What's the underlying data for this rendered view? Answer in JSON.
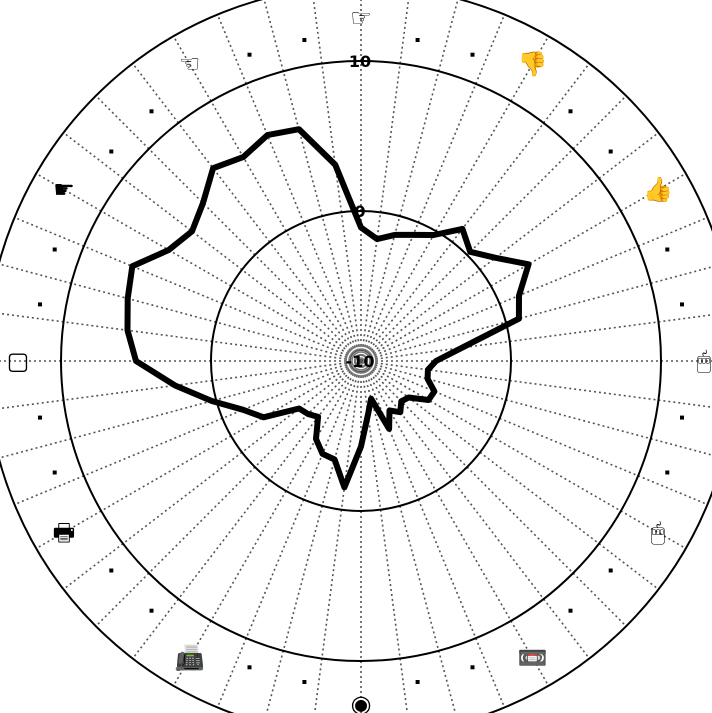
{
  "chart_data": {
    "type": "radar",
    "title": "",
    "r_range": [
      -10,
      15
    ],
    "r_ticks": [
      {
        "value": -10,
        "label": "-10"
      },
      {
        "value": 0,
        "label": "0"
      },
      {
        "value": 10,
        "label": "10"
      }
    ],
    "grid": true,
    "num_spokes": 48,
    "category_icons": [
      {
        "name": "pointing-right-hand-icon",
        "glyph": "☞"
      },
      {
        "name": "thumbs-down-icon",
        "glyph": "👎"
      },
      {
        "name": "thumbs-up-icon",
        "glyph": "👍"
      },
      {
        "name": "mouse-icon",
        "glyph": "🖱"
      },
      {
        "name": "mouse-icon",
        "glyph": "🖱"
      },
      {
        "name": "cassette-tape-icon",
        "glyph": "📼"
      },
      {
        "name": "target-circle-icon",
        "glyph": "◉"
      },
      {
        "name": "telephone-printer-icon",
        "glyph": "📠"
      },
      {
        "name": "printer-icon",
        "glyph": "🖶"
      },
      {
        "name": "blank-key-icon",
        "glyph": "▢"
      },
      {
        "name": "black-pointing-hand-icon",
        "glyph": "☛"
      },
      {
        "name": "pointing-left-hand-icon",
        "glyph": "☜"
      }
    ],
    "series": [
      {
        "values": [
          -1.1,
          -1.8,
          -1.3,
          -0.9,
          -0.3,
          1.1,
          0.3,
          1.3,
          2.9,
          1.4,
          0.9,
          -3.2,
          -5.0,
          -5.5,
          -5.4,
          -4.7,
          -4.8,
          -6.0,
          -6.2,
          -5.7,
          -6.2,
          -5.1,
          -7.4,
          -6.4,
          -4.3,
          -1.5,
          -3.2,
          -3.3,
          -4.0,
          -5.3,
          -5.0,
          -4.8,
          -2.5,
          -1.5,
          0.3,
          2.5,
          5.0,
          5.7,
          6.1,
          6.5,
          4.8,
          4.2,
          4.9,
          6.2,
          5.7,
          6.3,
          6.0,
          3.2
        ]
      }
    ]
  }
}
